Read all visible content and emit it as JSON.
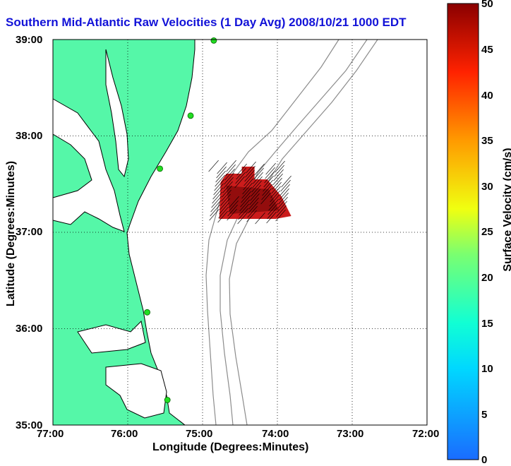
{
  "title": "Southern Mid-Atlantic Raw Velocities (1 Day Avg) 2008/10/21 1000 EDT",
  "x_axis": {
    "label": "Longitude (Degrees:Minutes)",
    "ticks": [
      "77:00",
      "76:00",
      "75:00",
      "74:00",
      "73:00",
      "72:00"
    ]
  },
  "y_axis": {
    "label": "Latitude (Degrees:Minutes)",
    "ticks": [
      "39:00",
      "38:00",
      "37:00",
      "36:00",
      "35:00"
    ]
  },
  "colorbar": {
    "label": "Surface Velocity (cm/s)",
    "min": 0,
    "max": 50,
    "ticks": [
      "50",
      "45",
      "40",
      "35",
      "30",
      "25",
      "20",
      "15",
      "10",
      "5",
      "0"
    ]
  },
  "colors": {
    "land": "#55f7a8",
    "water": "#ffffff",
    "bathymetry": "#8c8c8c",
    "stations": "#22dd22",
    "title": "#1212d8"
  },
  "chart_data": {
    "type": "map",
    "extent": {
      "lon": [
        -77,
        -72
      ],
      "lat": [
        35,
        39
      ]
    },
    "grid": true,
    "stations": [
      {
        "lon": -74.85,
        "lat": 38.99
      },
      {
        "lon": -75.16,
        "lat": 38.21
      },
      {
        "lon": -75.57,
        "lat": 37.66
      },
      {
        "lon": -75.74,
        "lat": 36.17
      },
      {
        "lon": -75.47,
        "lat": 35.26
      }
    ],
    "velocity_field": {
      "center": {
        "lon": -74.4,
        "lat": 37.3
      },
      "speed_range_cm_s": [
        40,
        50
      ],
      "direction": "northeast"
    }
  }
}
